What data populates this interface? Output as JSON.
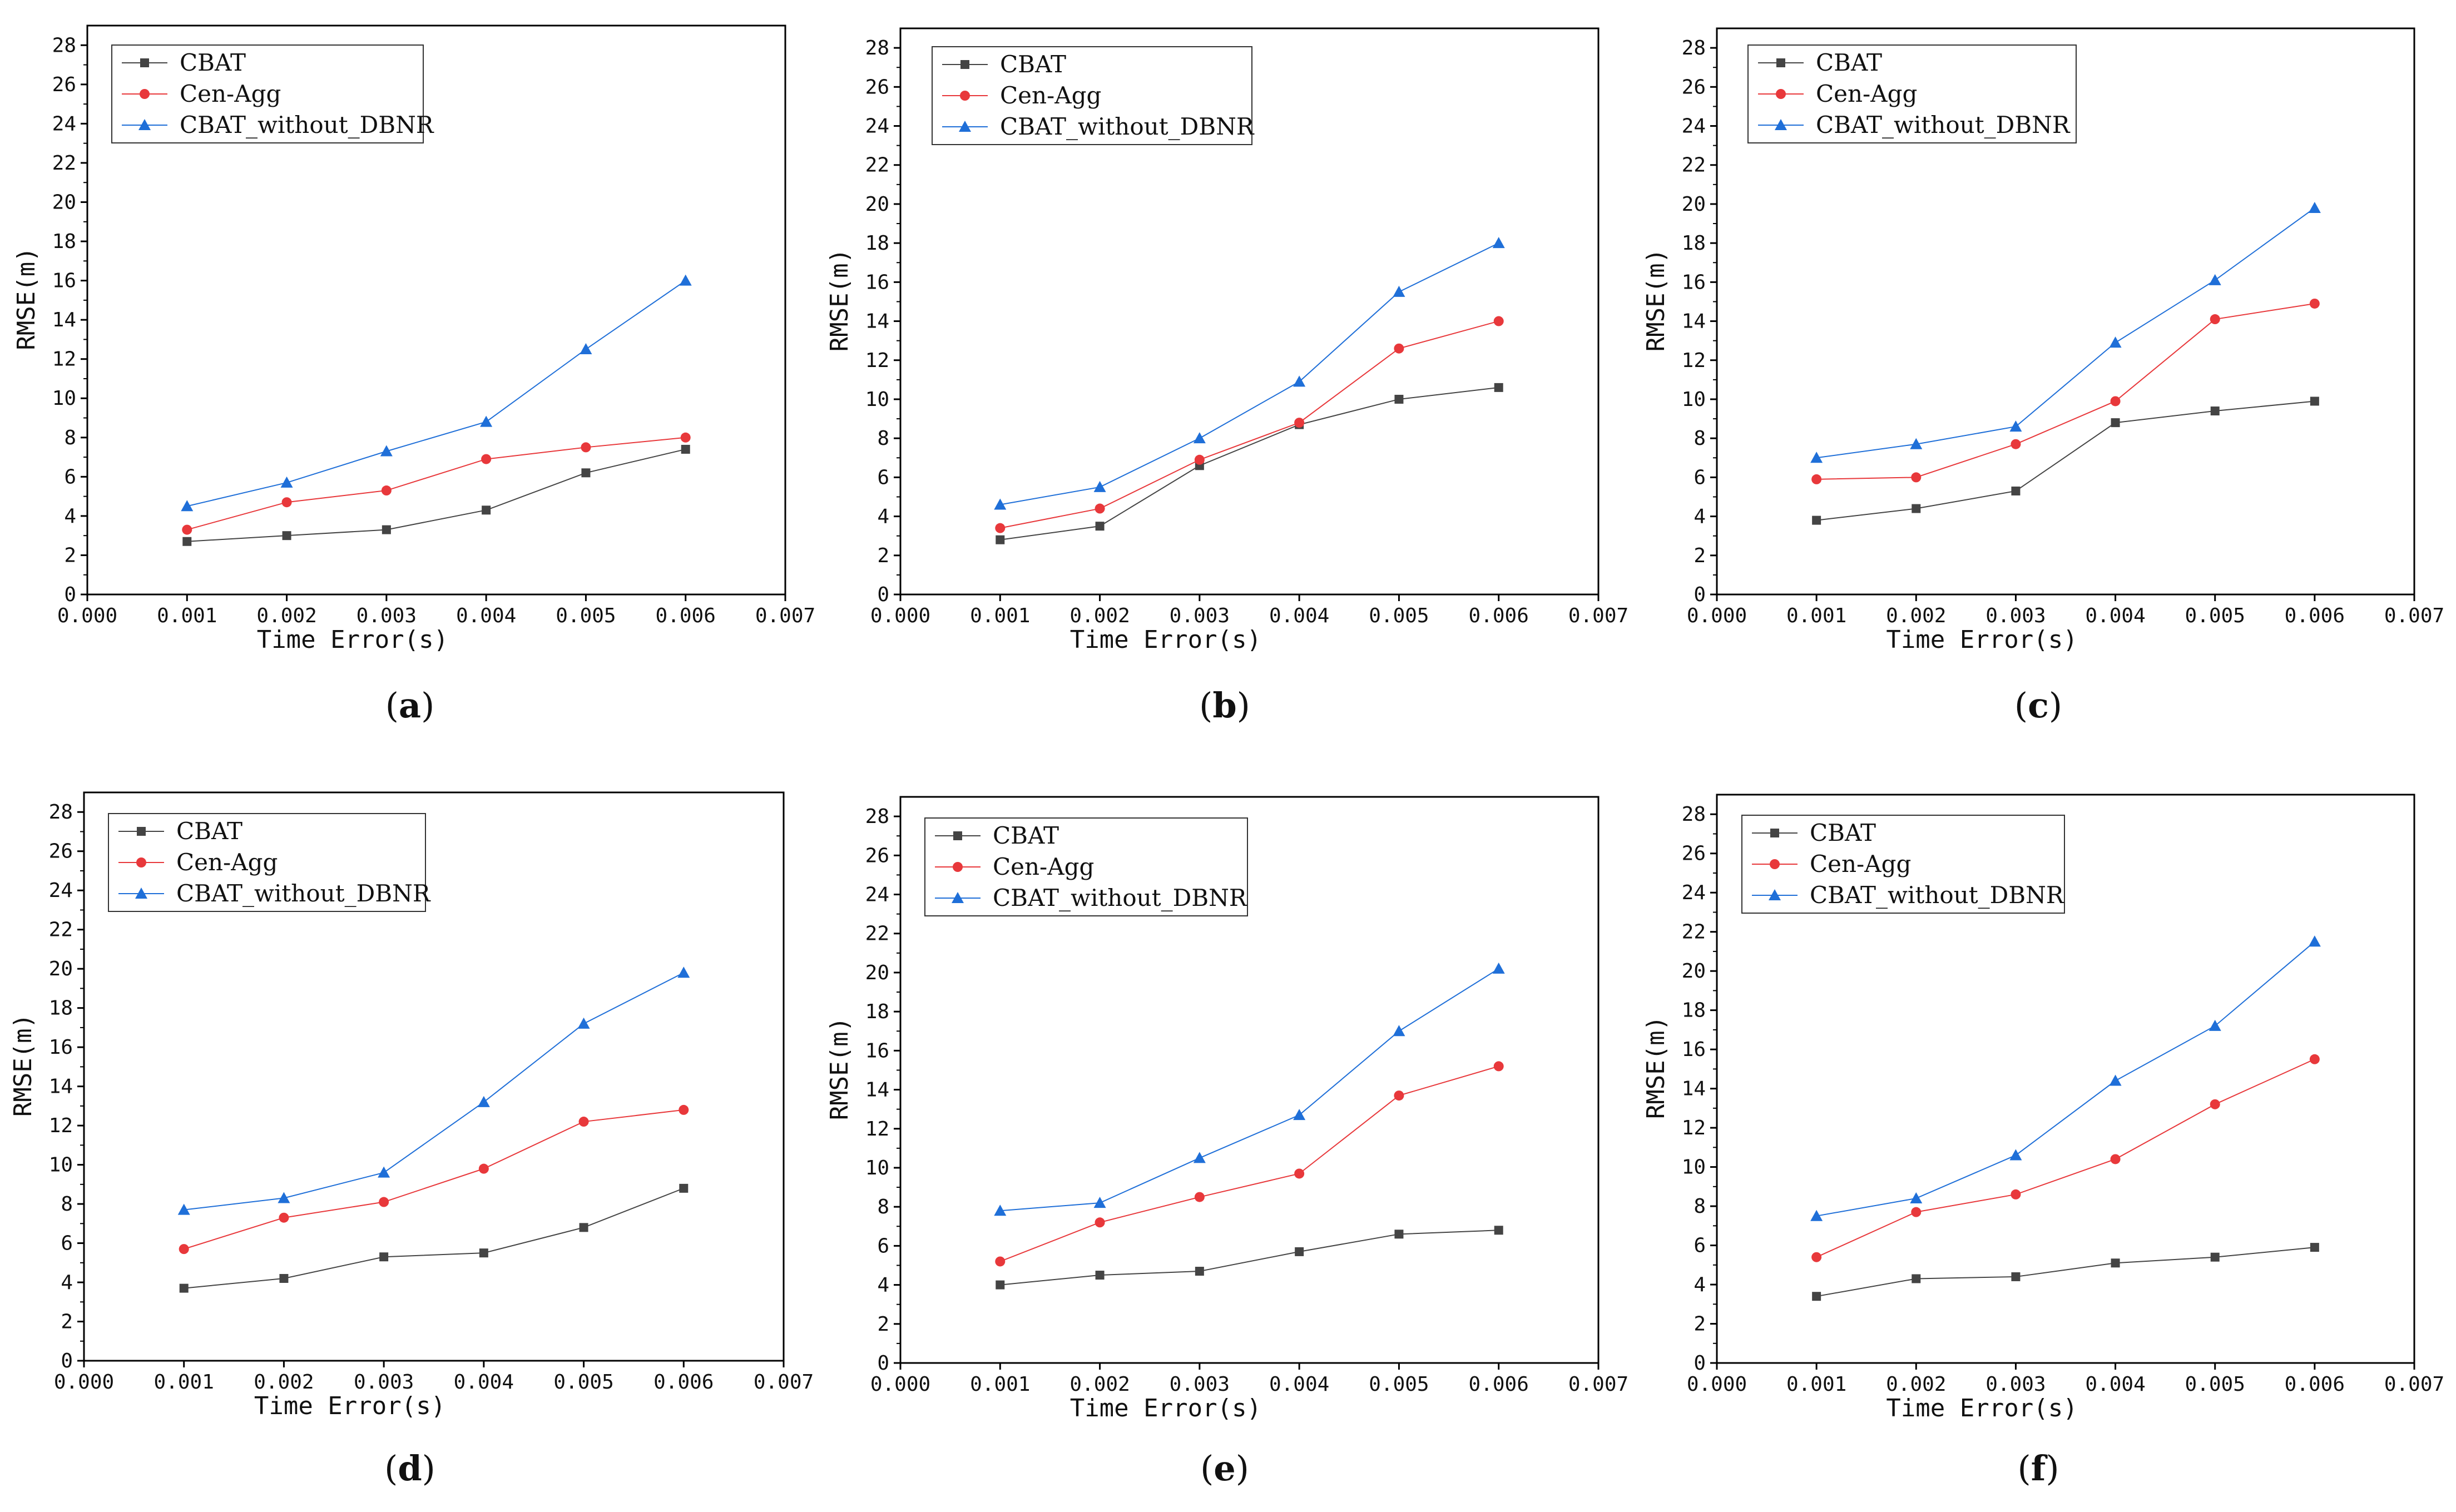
{
  "colors": {
    "CBAT": "#444444",
    "Cen-Agg": "#e8383b",
    "CBAT_without_DBNR": "#1f6fd8",
    "axis": "#000000"
  },
  "chart_data": [
    {
      "type": "line",
      "panel_label": "a",
      "xlabel": "Time Error(s)",
      "ylabel": "RMSE(m)",
      "xlim": [
        0.0,
        0.007
      ],
      "ylim": [
        0,
        29
      ],
      "xticks": [
        "0.000",
        "0.001",
        "0.002",
        "0.003",
        "0.004",
        "0.005",
        "0.006",
        "0.007"
      ],
      "yticks": [
        "0",
        "2",
        "4",
        "6",
        "8",
        "10",
        "12",
        "14",
        "16",
        "18",
        "20",
        "22",
        "24",
        "26",
        "28"
      ],
      "x": [
        0.001,
        0.002,
        0.003,
        0.004,
        0.005,
        0.006
      ],
      "legend_position": "top-left",
      "series": [
        {
          "name": "CBAT",
          "marker": "square",
          "values": [
            2.7,
            3.0,
            3.3,
            4.3,
            6.2,
            7.4
          ]
        },
        {
          "name": "Cen-Agg",
          "marker": "circle",
          "values": [
            3.3,
            4.7,
            5.3,
            6.9,
            7.5,
            8.0
          ]
        },
        {
          "name": "CBAT_without_DBNR",
          "marker": "triangle",
          "values": [
            4.5,
            5.7,
            7.3,
            8.8,
            12.5,
            16.0
          ]
        }
      ]
    },
    {
      "type": "line",
      "panel_label": "b",
      "xlabel": "Time Error(s)",
      "ylabel": "RMSE(m)",
      "xlim": [
        0.0,
        0.007
      ],
      "ylim": [
        0,
        29
      ],
      "xticks": [
        "0.000",
        "0.001",
        "0.002",
        "0.003",
        "0.004",
        "0.005",
        "0.006",
        "0.007"
      ],
      "yticks": [
        "0",
        "2",
        "4",
        "6",
        "8",
        "10",
        "12",
        "14",
        "16",
        "18",
        "20",
        "22",
        "24",
        "26",
        "28"
      ],
      "x": [
        0.001,
        0.002,
        0.003,
        0.004,
        0.005,
        0.006
      ],
      "legend_position": "top-left",
      "series": [
        {
          "name": "CBAT",
          "marker": "square",
          "values": [
            2.8,
            3.5,
            6.6,
            8.7,
            10.0,
            10.6
          ]
        },
        {
          "name": "Cen-Agg",
          "marker": "circle",
          "values": [
            3.4,
            4.4,
            6.9,
            8.8,
            12.6,
            14.0
          ]
        },
        {
          "name": "CBAT_without_DBNR",
          "marker": "triangle",
          "values": [
            4.6,
            5.5,
            8.0,
            10.9,
            15.5,
            18.0
          ]
        }
      ]
    },
    {
      "type": "line",
      "panel_label": "c",
      "xlabel": "Time Error(s)",
      "ylabel": "RMSE(m)",
      "xlim": [
        0.0,
        0.007
      ],
      "ylim": [
        0,
        29
      ],
      "xticks": [
        "0.000",
        "0.001",
        "0.002",
        "0.003",
        "0.004",
        "0.005",
        "0.006",
        "0.007"
      ],
      "yticks": [
        "0",
        "2",
        "4",
        "6",
        "8",
        "10",
        "12",
        "14",
        "16",
        "18",
        "20",
        "22",
        "24",
        "26",
        "28"
      ],
      "x": [
        0.001,
        0.002,
        0.003,
        0.004,
        0.005,
        0.006
      ],
      "legend_position": "top-left",
      "series": [
        {
          "name": "CBAT",
          "marker": "square",
          "values": [
            3.8,
            4.4,
            5.3,
            8.8,
            9.4,
            9.9
          ]
        },
        {
          "name": "Cen-Agg",
          "marker": "circle",
          "values": [
            5.9,
            6.0,
            7.7,
            9.9,
            14.1,
            14.9
          ]
        },
        {
          "name": "CBAT_without_DBNR",
          "marker": "triangle",
          "values": [
            7.0,
            7.7,
            8.6,
            12.9,
            16.1,
            19.8
          ]
        }
      ]
    },
    {
      "type": "line",
      "panel_label": "d",
      "xlabel": "Time Error(s)",
      "ylabel": "RMSE(m)",
      "xlim": [
        0.0,
        0.007
      ],
      "ylim": [
        0,
        29
      ],
      "xticks": [
        "0.000",
        "0.001",
        "0.002",
        "0.003",
        "0.004",
        "0.005",
        "0.006",
        "0.007"
      ],
      "yticks": [
        "0",
        "2",
        "4",
        "6",
        "8",
        "10",
        "12",
        "14",
        "16",
        "18",
        "20",
        "22",
        "24",
        "26",
        "28"
      ],
      "x": [
        0.001,
        0.002,
        0.003,
        0.004,
        0.005,
        0.006
      ],
      "legend_position": "top-left",
      "series": [
        {
          "name": "CBAT",
          "marker": "square",
          "values": [
            3.7,
            4.2,
            5.3,
            5.5,
            6.8,
            8.8
          ]
        },
        {
          "name": "Cen-Agg",
          "marker": "circle",
          "values": [
            5.7,
            7.3,
            8.1,
            9.8,
            12.2,
            12.8
          ]
        },
        {
          "name": "CBAT_without_DBNR",
          "marker": "triangle",
          "values": [
            7.7,
            8.3,
            9.6,
            13.2,
            17.2,
            19.8
          ]
        }
      ]
    },
    {
      "type": "line",
      "panel_label": "e",
      "xlabel": "Time Error(s)",
      "ylabel": "RMSE(m)",
      "xlim": [
        0.0,
        0.007
      ],
      "ylim": [
        0,
        29
      ],
      "xticks": [
        "0.000",
        "0.001",
        "0.002",
        "0.003",
        "0.004",
        "0.005",
        "0.006",
        "0.007"
      ],
      "yticks": [
        "0",
        "2",
        "4",
        "6",
        "8",
        "10",
        "12",
        "14",
        "16",
        "18",
        "20",
        "22",
        "24",
        "26",
        "28"
      ],
      "x": [
        0.001,
        0.002,
        0.003,
        0.004,
        0.005,
        0.006
      ],
      "legend_position": "top-left",
      "series": [
        {
          "name": "CBAT",
          "marker": "square",
          "values": [
            4.0,
            4.5,
            4.7,
            5.7,
            6.6,
            6.8
          ]
        },
        {
          "name": "Cen-Agg",
          "marker": "circle",
          "values": [
            5.2,
            7.2,
            8.5,
            9.7,
            13.7,
            15.2
          ]
        },
        {
          "name": "CBAT_without_DBNR",
          "marker": "triangle",
          "values": [
            7.8,
            8.2,
            10.5,
            12.7,
            17.0,
            20.2
          ]
        }
      ]
    },
    {
      "type": "line",
      "panel_label": "f",
      "xlabel": "Time Error(s)",
      "ylabel": "RMSE(m)",
      "xlim": [
        0.0,
        0.007
      ],
      "ylim": [
        0,
        29
      ],
      "xticks": [
        "0.000",
        "0.001",
        "0.002",
        "0.003",
        "0.004",
        "0.005",
        "0.006",
        "0.007"
      ],
      "yticks": [
        "0",
        "2",
        "4",
        "6",
        "8",
        "10",
        "12",
        "14",
        "16",
        "18",
        "20",
        "22",
        "24",
        "26",
        "28"
      ],
      "x": [
        0.001,
        0.002,
        0.003,
        0.004,
        0.005,
        0.006
      ],
      "legend_position": "top-left",
      "series": [
        {
          "name": "CBAT",
          "marker": "square",
          "values": [
            3.4,
            4.3,
            4.4,
            5.1,
            5.4,
            5.9
          ]
        },
        {
          "name": "Cen-Agg",
          "marker": "circle",
          "values": [
            5.4,
            7.7,
            8.6,
            10.4,
            13.2,
            15.5
          ]
        },
        {
          "name": "CBAT_without_DBNR",
          "marker": "triangle",
          "values": [
            7.5,
            8.4,
            10.6,
            14.4,
            17.2,
            21.5
          ]
        }
      ]
    }
  ]
}
